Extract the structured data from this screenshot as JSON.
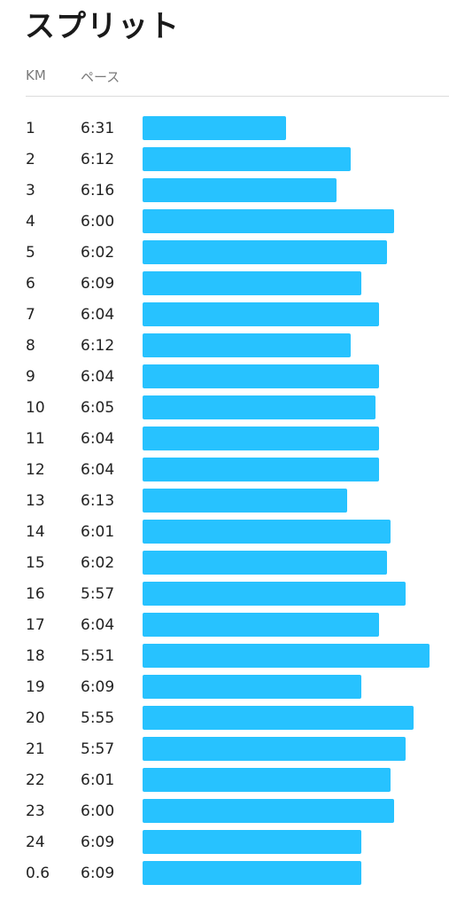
{
  "title": "スプリット",
  "header": {
    "km_label": "KM",
    "pace_label": "ペース"
  },
  "colors": {
    "bar": "#27c2ff",
    "text": "#222222",
    "header_text": "#7a7a7a",
    "divider": "#dcdcdc"
  },
  "chart_data": {
    "type": "bar",
    "orientation": "horizontal",
    "description_of_scale": "bar length inversely proportional to pace (faster = longer)",
    "categories": [
      "1",
      "2",
      "3",
      "4",
      "5",
      "6",
      "7",
      "8",
      "9",
      "10",
      "11",
      "12",
      "13",
      "14",
      "15",
      "16",
      "17",
      "18",
      "19",
      "20",
      "21",
      "22",
      "23",
      "24",
      "0.6"
    ],
    "pace_labels": [
      "6:31",
      "6:12",
      "6:16",
      "6:00",
      "6:02",
      "6:09",
      "6:04",
      "6:12",
      "6:04",
      "6:05",
      "6:04",
      "6:04",
      "6:13",
      "6:01",
      "6:02",
      "5:57",
      "6:04",
      "5:51",
      "6:09",
      "5:55",
      "5:57",
      "6:01",
      "6:00",
      "6:09",
      "6:09"
    ],
    "values_seconds_per_km": [
      391,
      372,
      376,
      360,
      362,
      369,
      364,
      372,
      364,
      365,
      364,
      364,
      373,
      361,
      362,
      357,
      364,
      351,
      369,
      355,
      357,
      361,
      360,
      369,
      369
    ],
    "title": "スプリット",
    "xlabel": "ペース",
    "ylabel": "KM"
  },
  "splits": [
    {
      "km": "1",
      "pace": "6:31"
    },
    {
      "km": "2",
      "pace": "6:12"
    },
    {
      "km": "3",
      "pace": "6:16"
    },
    {
      "km": "4",
      "pace": "6:00"
    },
    {
      "km": "5",
      "pace": "6:02"
    },
    {
      "km": "6",
      "pace": "6:09"
    },
    {
      "km": "7",
      "pace": "6:04"
    },
    {
      "km": "8",
      "pace": "6:12"
    },
    {
      "km": "9",
      "pace": "6:04"
    },
    {
      "km": "10",
      "pace": "6:05"
    },
    {
      "km": "11",
      "pace": "6:04"
    },
    {
      "km": "12",
      "pace": "6:04"
    },
    {
      "km": "13",
      "pace": "6:13"
    },
    {
      "km": "14",
      "pace": "6:01"
    },
    {
      "km": "15",
      "pace": "6:02"
    },
    {
      "km": "16",
      "pace": "5:57"
    },
    {
      "km": "17",
      "pace": "6:04"
    },
    {
      "km": "18",
      "pace": "5:51"
    },
    {
      "km": "19",
      "pace": "6:09"
    },
    {
      "km": "20",
      "pace": "5:55"
    },
    {
      "km": "21",
      "pace": "5:57"
    },
    {
      "km": "22",
      "pace": "6:01"
    },
    {
      "km": "23",
      "pace": "6:00"
    },
    {
      "km": "24",
      "pace": "6:09"
    },
    {
      "km": "0.6",
      "pace": "6:09"
    }
  ]
}
